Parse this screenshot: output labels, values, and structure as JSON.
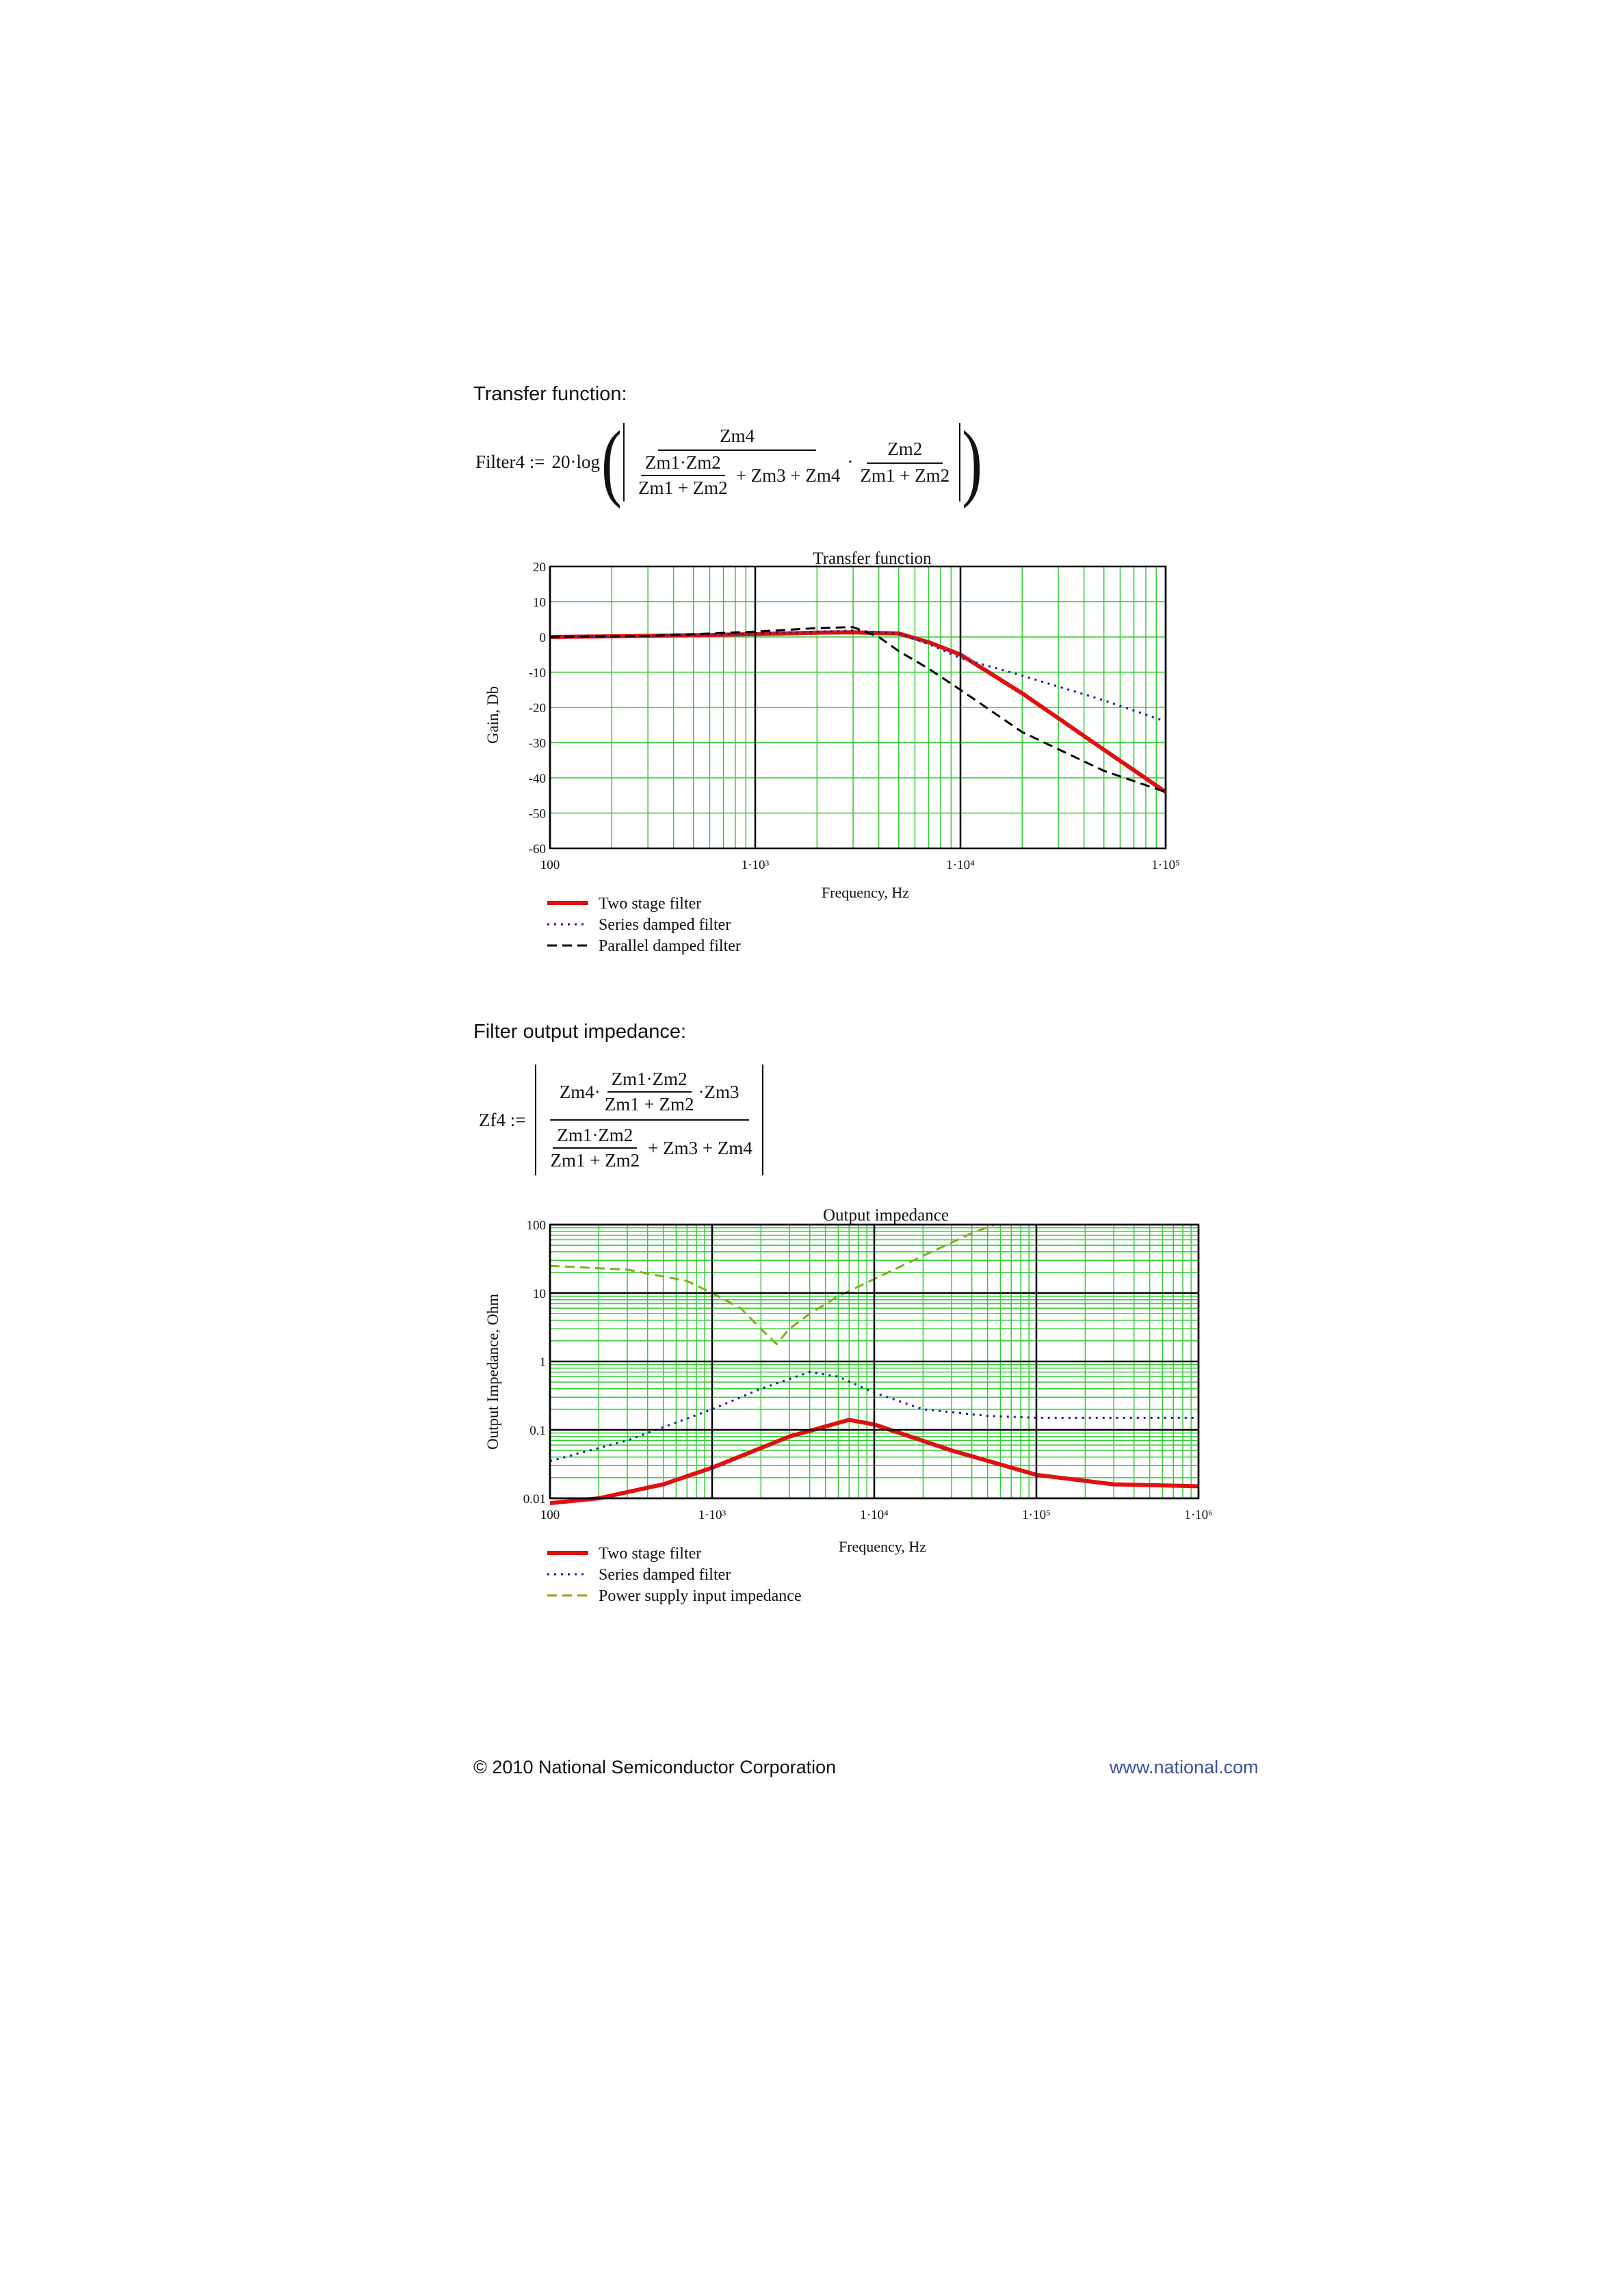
{
  "sections": {
    "transfer_heading": "Transfer function:",
    "impedance_heading": "Filter output impedance:"
  },
  "eq1": {
    "lhs": "Filter4 :=",
    "prefix": "20·log",
    "outer_num": "Zm4",
    "inner_num": "Zm1·Zm2",
    "inner_den": "Zm1 + Zm2",
    "plus_terms": "+ Zm3 + Zm4",
    "dot": "·",
    "right_num": "Zm2",
    "right_den": "Zm1 + Zm2"
  },
  "eq2": {
    "lhs": "Zf4 :=",
    "num_left": "Zm4·",
    "num_frac_num": "Zm1·Zm2",
    "num_frac_den": "Zm1 + Zm2",
    "num_right": "·Zm3",
    "den_frac_num": "Zm1·Zm2",
    "den_frac_den": "Zm1 + Zm2",
    "den_right": "+ Zm3 + Zm4"
  },
  "footer": {
    "copyright": "© 2010 National Semiconductor Corporation",
    "website": "www.national.com"
  },
  "colors": {
    "grid_minor": "#33cc33",
    "red": "#e01010",
    "blue": "#1a1aa8",
    "black": "#000000",
    "green": "#7fae1a"
  },
  "chart_data": [
    {
      "type": "line",
      "title": "Transfer function",
      "xlabel": "Frequency, Hz",
      "ylabel": "Gain, Db",
      "x_scale": "log",
      "xlim": [
        100,
        100000
      ],
      "ylim": [
        -60,
        20
      ],
      "x_tick_labels": [
        "100",
        "1·10³",
        "1·10⁴",
        "1·10⁵"
      ],
      "y_tick_labels": [
        "20",
        "10",
        "0",
        "-10",
        "-20",
        "-30",
        "-40",
        "-50",
        "-60"
      ],
      "grid": true,
      "legend_placement": "below",
      "series": [
        {
          "name": "Two stage filter",
          "style": "solid-thick",
          "color": "#e01010",
          "x": [
            100,
            300,
            1000,
            2000,
            3000,
            5000,
            7000,
            10000,
            20000,
            50000,
            100000
          ],
          "y": [
            0,
            0.3,
            0.8,
            1.2,
            1.3,
            1,
            -1.5,
            -5,
            -16,
            -32,
            -44
          ]
        },
        {
          "name": "Series damped filter",
          "style": "dotted",
          "color": "#1a1aa8",
          "x": [
            100,
            300,
            1000,
            2000,
            3000,
            5000,
            7000,
            10000,
            20000,
            50000,
            100000
          ],
          "y": [
            0,
            0.3,
            1,
            1.5,
            1.8,
            1,
            -2,
            -6,
            -11,
            -18,
            -24
          ]
        },
        {
          "name": "Parallel damped filter",
          "style": "dashed",
          "color": "#000000",
          "x": [
            100,
            300,
            1000,
            2000,
            3000,
            4000,
            5000,
            7000,
            10000,
            20000,
            50000,
            100000
          ],
          "y": [
            0,
            0.3,
            1.5,
            2.5,
            2.8,
            0,
            -4,
            -9,
            -15,
            -27,
            -38,
            -44
          ]
        }
      ]
    },
    {
      "type": "line",
      "title": "Output impedance",
      "xlabel": "Frequency, Hz",
      "ylabel": "Output Impedance, Ohm",
      "x_scale": "log",
      "y_scale": "log",
      "xlim": [
        100,
        1000000
      ],
      "ylim": [
        0.01,
        100
      ],
      "x_tick_labels": [
        "100",
        "1·10³",
        "1·10⁴",
        "1·10⁵",
        "1·10⁶"
      ],
      "y_tick_labels": [
        "100",
        "10",
        "1",
        "0.1",
        "0.01"
      ],
      "grid": true,
      "legend_placement": "below",
      "series": [
        {
          "name": "Two stage filter",
          "style": "solid-thick",
          "color": "#e01010",
          "x": [
            100,
            200,
            500,
            1000,
            3000,
            7000,
            10000,
            30000,
            100000,
            300000,
            1000000
          ],
          "y": [
            0.0085,
            0.01,
            0.016,
            0.028,
            0.08,
            0.14,
            0.12,
            0.05,
            0.022,
            0.016,
            0.015
          ]
        },
        {
          "name": "Series damped filter",
          "style": "dotted",
          "color": "#1a1aa8",
          "x": [
            100,
            300,
            1000,
            2000,
            4000,
            6000,
            10000,
            20000,
            50000,
            100000,
            300000,
            1000000
          ],
          "y": [
            0.035,
            0.07,
            0.2,
            0.4,
            0.7,
            0.6,
            0.35,
            0.2,
            0.16,
            0.15,
            0.15,
            0.15
          ]
        },
        {
          "name": "Power supply input impedance",
          "style": "dashed",
          "color": "#7fae1a",
          "x": [
            100,
            300,
            700,
            1000,
            1500,
            2000,
            2500,
            3000,
            4000,
            6000,
            10000,
            20000,
            40000,
            55000
          ],
          "y": [
            25,
            22,
            15,
            10,
            6,
            3,
            1.8,
            3,
            5,
            9,
            16,
            35,
            75,
            100
          ]
        }
      ]
    }
  ]
}
